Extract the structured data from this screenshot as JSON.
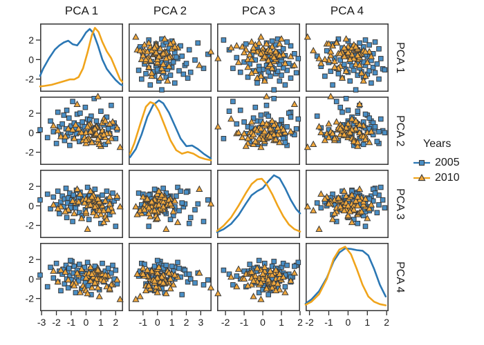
{
  "figure": {
    "background": "#ffffff"
  },
  "legend": {
    "title": "Years",
    "items": [
      {
        "label": "2005",
        "marker": "square",
        "color": "#2B77B4",
        "fill": "#4A8FC6"
      },
      {
        "label": "2010",
        "marker": "triangle",
        "color": "#F0A41B",
        "fill": "#F0A73C"
      }
    ]
  },
  "chart_data": {
    "type": "scatter",
    "subtype": "scatterplot-matrix",
    "diagonal": "density",
    "variables": [
      "PCA 1",
      "PCA 2",
      "PCA 3",
      "PCA 4"
    ],
    "grid": false,
    "legend_position": "right",
    "panel_border_color": "#3D3D3D",
    "tick_color": "#2A2A2A",
    "y_range": [
      -3.3,
      3.7
    ],
    "y_ticks": [
      2,
      0,
      -2
    ],
    "axes": {
      "pca1": {
        "label": "PCA 1",
        "x_range": [
          -3.1,
          2.5
        ],
        "x_ticks": [
          -3,
          -2,
          -1,
          0,
          1,
          2
        ]
      },
      "pca2": {
        "label": "PCA 2",
        "x_range": [
          -2.0,
          3.75
        ],
        "x_ticks": [
          -1,
          0,
          1,
          2,
          3
        ]
      },
      "pca3": {
        "label": "PCA 3",
        "x_range": [
          -2.45,
          2.0
        ],
        "x_ticks": [
          -2,
          -1,
          0,
          1,
          2
        ]
      },
      "pca4": {
        "label": "PCA 4",
        "x_range": [
          -2.2,
          2.1
        ],
        "x_ticks": [
          -2,
          -1,
          0,
          1,
          2
        ]
      }
    },
    "series": [
      {
        "name": "2005",
        "marker": "square",
        "color": "#2B77B4",
        "fill": "#4A8FC6",
        "points": {
          "pca1": [
            -3.1,
            -2.6,
            -2.4,
            -2.2,
            -2.0,
            -1.9,
            -1.8,
            -1.7,
            -1.6,
            -1.5,
            -1.45,
            -1.35,
            -1.3,
            -1.25,
            -1.2,
            -1.15,
            -1.1,
            -1.0,
            -0.95,
            -0.9,
            -0.85,
            -0.8,
            -0.7,
            -0.65,
            -0.6,
            -0.5,
            -0.45,
            -0.4,
            -0.3,
            -0.25,
            -0.2,
            -0.1,
            -0.05,
            0.0,
            0.1,
            0.15,
            0.2,
            0.3,
            0.35,
            0.4,
            0.5,
            0.55,
            0.6,
            0.7,
            0.8,
            0.9,
            1.0,
            1.1,
            1.2,
            1.3,
            1.4,
            1.5,
            1.6,
            1.7,
            1.8,
            1.9,
            2.0,
            2.1,
            0.25,
            -1.05
          ],
          "pca2": [
            0.3,
            -0.5,
            1.2,
            0.1,
            -1.1,
            2.1,
            0.6,
            -0.2,
            0.9,
            1.8,
            -0.8,
            0.4,
            2.3,
            -0.3,
            0.0,
            1.5,
            -1.3,
            0.7,
            0.2,
            3.2,
            -0.6,
            1.0,
            0.5,
            -0.1,
            1.9,
            0.8,
            -0.9,
            2.0,
            0.3,
            1.1,
            -0.4,
            0.6,
            2.6,
            0.0,
            1.4,
            -0.7,
            0.9,
            0.2,
            1.7,
            -1.0,
            0.5,
            3.5,
            -0.2,
            1.2,
            0.7,
            -0.5,
            2.2,
            0.1,
            0.8,
            -1.2,
            1.6,
            0.4,
            -0.1,
            2.8,
            0.6,
            1.0,
            -0.6,
            0.3,
            1.3,
            0.0
          ],
          "pca3": [
            0.6,
            1.2,
            -0.3,
            0.9,
            0.1,
            1.5,
            -0.8,
            0.4,
            1.0,
            -0.1,
            0.7,
            1.8,
            -1.2,
            0.3,
            0.8,
            -0.5,
            1.3,
            0.0,
            0.6,
            -1.6,
            1.1,
            0.5,
            -0.2,
            1.6,
            0.2,
            0.9,
            -0.7,
            1.4,
            0.4,
            -1.0,
            0.7,
            1.0,
            -0.4,
            0.5,
            1.9,
            0.1,
            -1.4,
            0.8,
            0.3,
            1.2,
            -0.6,
            0.6,
            1.7,
            -0.1,
            0.9,
            0.0,
            -1.8,
            1.1,
            0.4,
            -0.3,
            1.5,
            0.7,
            -0.9,
            0.2,
            1.3,
            0.5,
            -2.1,
            0.8,
            1.0,
            -0.2
          ],
          "pca4": [
            0.4,
            -0.8,
            1.2,
            0.1,
            1.6,
            -0.3,
            0.8,
            -1.2,
            0.5,
            1.0,
            -0.5,
            1.4,
            0.0,
            0.7,
            -0.9,
            1.1,
            0.3,
            -0.1,
            1.8,
            -0.6,
            0.6,
            1.3,
            -1.4,
            0.2,
            0.9,
            -0.2,
            1.5,
            0.5,
            -1.0,
            0.8,
            0.1,
            1.2,
            -0.4,
            0.6,
            1.7,
            -0.7,
            0.3,
            1.0,
            -1.6,
            0.4,
            0.9,
            -0.1,
            1.3,
            0.0,
            0.7,
            -1.1,
            0.5,
            1.6,
            -0.3,
            0.8,
            0.2,
            1.1,
            -0.8,
            0.6,
            1.4,
            0.0,
            0.9,
            -0.5,
            0.3,
            1.9
          ]
        }
      },
      {
        "name": "2010",
        "marker": "triangle",
        "color": "#F0A41B",
        "fill": "#F0A73C",
        "points": {
          "pca1": [
            0.5,
            1.1,
            -0.2,
            0.8,
            1.6,
            0.0,
            -0.7,
            1.3,
            0.4,
            0.9,
            -1.2,
            0.6,
            1.8,
            0.2,
            -0.4,
            1.0,
            0.7,
            -1.7,
            0.3,
            1.4,
            0.1,
            -0.9,
            0.8,
            2.1,
            0.5,
            -0.1,
            1.2,
            0.6,
            -2.2,
            0.9,
            0.4,
            1.7,
            -0.5,
            0.7,
            0.0,
            1.1,
            0.3,
            -1.4,
            0.8,
            1.5,
            0.6,
            -0.3,
            1.0,
            0.2,
            2.3,
            0.5,
            -0.8,
            1.3,
            0.7,
            0.1,
            0.9,
            -1.9,
            0.4,
            1.6,
            0.0,
            0.8,
            0.6,
            -0.6,
            1.2,
            0.3
          ],
          "pca2": [
            -0.3,
            0.2,
            -0.8,
            0.5,
            -0.1,
            -1.1,
            0.8,
            -0.5,
            0.1,
            -0.9,
            0.4,
            -0.2,
            1.1,
            -0.6,
            0.0,
            -1.4,
            0.6,
            -0.4,
            0.9,
            -0.1,
            -0.7,
            0.3,
            -1.0,
            0.5,
            0.0,
            -0.5,
            1.4,
            -0.2,
            0.7,
            -1.2,
            0.2,
            -0.6,
            0.4,
            -0.1,
            -0.8,
            1.0,
            0.1,
            -0.4,
            3.7,
            -0.9,
            0.5,
            0.0,
            -0.3,
            0.8,
            -1.5,
            0.3,
            -0.6,
            1.2,
            -0.1,
            0.6,
            -0.4,
            0.2,
            -1.0,
            0.9,
            0.0,
            -0.7,
            0.4,
            2.9,
            -0.2,
            0.1
          ],
          "pca3": [
            0.0,
            -0.5,
            0.6,
            -0.2,
            0.9,
            -0.8,
            0.3,
            -1.1,
            0.5,
            0.1,
            -0.4,
            0.8,
            -0.6,
            0.2,
            1.2,
            -0.9,
            0.4,
            -0.1,
            0.7,
            -1.4,
            0.0,
            0.5,
            -0.3,
            1.0,
            -0.7,
            0.3,
            -1.7,
            0.6,
            0.1,
            -0.5,
            0.9,
            -0.2,
            0.4,
            -1.0,
            0.7,
            0.0,
            1.5,
            -0.6,
            0.2,
            -0.4,
            0.8,
            -1.3,
            0.3,
            0.6,
            -0.1,
            1.1,
            -0.8,
            0.5,
            0.0,
            -2.4,
            0.4,
            -0.3,
            0.9,
            0.2,
            -0.6,
            0.7,
            -0.1,
            1.7,
            -0.5,
            0.1
          ],
          "pca4": [
            -0.2,
            0.3,
            -0.7,
            0.1,
            -1.1,
            0.5,
            -0.4,
            0.0,
            -0.9,
            0.4,
            -0.1,
            0.7,
            -0.6,
            0.2,
            -1.4,
            0.5,
            -0.3,
            0.9,
            0.0,
            -0.8,
            0.3,
            -0.5,
            1.1,
            -0.1,
            0.6,
            -1.0,
            0.2,
            -0.4,
            0.8,
            -1.8,
            0.1,
            -0.6,
            0.4,
            0.0,
            -1.2,
            0.5,
            -0.2,
            0.7,
            -0.9,
            0.3,
            -0.5,
            1.0,
            -0.1,
            0.6,
            -2.1,
            0.2,
            -0.7,
            0.4,
            0.0,
            -1.5,
            0.8,
            -0.3,
            0.5,
            -1.0,
            0.1,
            0.9,
            -0.4,
            0.6,
            -0.2,
            1.2
          ]
        }
      }
    ],
    "density": {
      "pca1": {
        "2005": [
          [
            -3.1,
            0.2
          ],
          [
            -2.9,
            0.32
          ],
          [
            -2.5,
            0.5
          ],
          [
            -2.1,
            0.65
          ],
          [
            -1.8,
            0.72
          ],
          [
            -1.5,
            0.77
          ],
          [
            -1.2,
            0.8
          ],
          [
            -0.9,
            0.74
          ],
          [
            -0.6,
            0.72
          ],
          [
            -0.3,
            0.82
          ],
          [
            0.0,
            0.94
          ],
          [
            0.25,
            1.0
          ],
          [
            0.5,
            0.93
          ],
          [
            0.8,
            0.72
          ],
          [
            1.1,
            0.48
          ],
          [
            1.4,
            0.32
          ],
          [
            1.7,
            0.22
          ],
          [
            2.0,
            0.13
          ],
          [
            2.3,
            0.06
          ],
          [
            2.45,
            0.04
          ]
        ],
        "2010": [
          [
            -3.1,
            0.02
          ],
          [
            -2.8,
            0.03
          ],
          [
            -2.3,
            0.05
          ],
          [
            -1.9,
            0.08
          ],
          [
            -1.5,
            0.11
          ],
          [
            -1.1,
            0.14
          ],
          [
            -0.8,
            0.14
          ],
          [
            -0.5,
            0.18
          ],
          [
            -0.2,
            0.33
          ],
          [
            0.1,
            0.6
          ],
          [
            0.4,
            0.9
          ],
          [
            0.6,
            1.02
          ],
          [
            0.85,
            0.95
          ],
          [
            1.1,
            0.78
          ],
          [
            1.4,
            0.62
          ],
          [
            1.7,
            0.5
          ],
          [
            2.0,
            0.32
          ],
          [
            2.3,
            0.14
          ],
          [
            2.45,
            0.1
          ]
        ]
      },
      "pca2": {
        "2005": [
          [
            -1.9,
            0.06
          ],
          [
            -1.5,
            0.2
          ],
          [
            -1.1,
            0.45
          ],
          [
            -0.7,
            0.75
          ],
          [
            -0.3,
            0.95
          ],
          [
            0.1,
            1.03
          ],
          [
            0.4,
            0.98
          ],
          [
            0.8,
            0.82
          ],
          [
            1.2,
            0.6
          ],
          [
            1.6,
            0.38
          ],
          [
            2.0,
            0.25
          ],
          [
            2.4,
            0.26
          ],
          [
            2.8,
            0.2
          ],
          [
            3.2,
            0.12
          ],
          [
            3.5,
            0.07
          ],
          [
            3.7,
            0.04
          ]
        ],
        "2010": [
          [
            -1.9,
            0.12
          ],
          [
            -1.6,
            0.3
          ],
          [
            -1.2,
            0.62
          ],
          [
            -0.8,
            0.92
          ],
          [
            -0.5,
            1.0
          ],
          [
            -0.2,
            0.97
          ],
          [
            0.1,
            0.85
          ],
          [
            0.5,
            0.6
          ],
          [
            0.9,
            0.35
          ],
          [
            1.3,
            0.18
          ],
          [
            1.7,
            0.12
          ],
          [
            2.1,
            0.15
          ],
          [
            2.5,
            0.12
          ],
          [
            2.9,
            0.06
          ],
          [
            3.3,
            0.03
          ],
          [
            3.7,
            0.01
          ]
        ]
      },
      "pca3": {
        "2005": [
          [
            -2.45,
            0.03
          ],
          [
            -2.1,
            0.08
          ],
          [
            -1.7,
            0.17
          ],
          [
            -1.3,
            0.32
          ],
          [
            -0.9,
            0.52
          ],
          [
            -0.6,
            0.66
          ],
          [
            -0.3,
            0.73
          ],
          [
            0.0,
            0.78
          ],
          [
            0.3,
            0.9
          ],
          [
            0.6,
            1.0
          ],
          [
            0.9,
            0.95
          ],
          [
            1.2,
            0.78
          ],
          [
            1.5,
            0.58
          ],
          [
            1.8,
            0.42
          ],
          [
            2.0,
            0.35
          ]
        ],
        "2010": [
          [
            -2.45,
            0.05
          ],
          [
            -2.1,
            0.14
          ],
          [
            -1.7,
            0.28
          ],
          [
            -1.3,
            0.48
          ],
          [
            -0.9,
            0.7
          ],
          [
            -0.6,
            0.85
          ],
          [
            -0.3,
            0.93
          ],
          [
            -0.05,
            0.94
          ],
          [
            0.2,
            0.85
          ],
          [
            0.5,
            0.68
          ],
          [
            0.8,
            0.48
          ],
          [
            1.1,
            0.3
          ],
          [
            1.4,
            0.16
          ],
          [
            1.7,
            0.08
          ],
          [
            2.0,
            0.04
          ]
        ]
      },
      "pca4": {
        "2005": [
          [
            -2.2,
            0.06
          ],
          [
            -1.9,
            0.13
          ],
          [
            -1.5,
            0.27
          ],
          [
            -1.1,
            0.5
          ],
          [
            -0.75,
            0.78
          ],
          [
            -0.45,
            0.93
          ],
          [
            -0.15,
            1.0
          ],
          [
            0.15,
            0.99
          ],
          [
            0.45,
            0.97
          ],
          [
            0.75,
            0.96
          ],
          [
            1.05,
            0.88
          ],
          [
            1.35,
            0.65
          ],
          [
            1.65,
            0.38
          ],
          [
            1.95,
            0.18
          ]
        ],
        "2010": [
          [
            -2.2,
            0.04
          ],
          [
            -1.9,
            0.09
          ],
          [
            -1.5,
            0.22
          ],
          [
            -1.1,
            0.48
          ],
          [
            -0.75,
            0.82
          ],
          [
            -0.45,
            0.98
          ],
          [
            -0.15,
            1.03
          ],
          [
            0.15,
            0.9
          ],
          [
            0.45,
            0.65
          ],
          [
            0.75,
            0.38
          ],
          [
            1.05,
            0.18
          ],
          [
            1.35,
            0.09
          ],
          [
            1.65,
            0.05
          ],
          [
            1.95,
            0.03
          ]
        ]
      }
    }
  }
}
